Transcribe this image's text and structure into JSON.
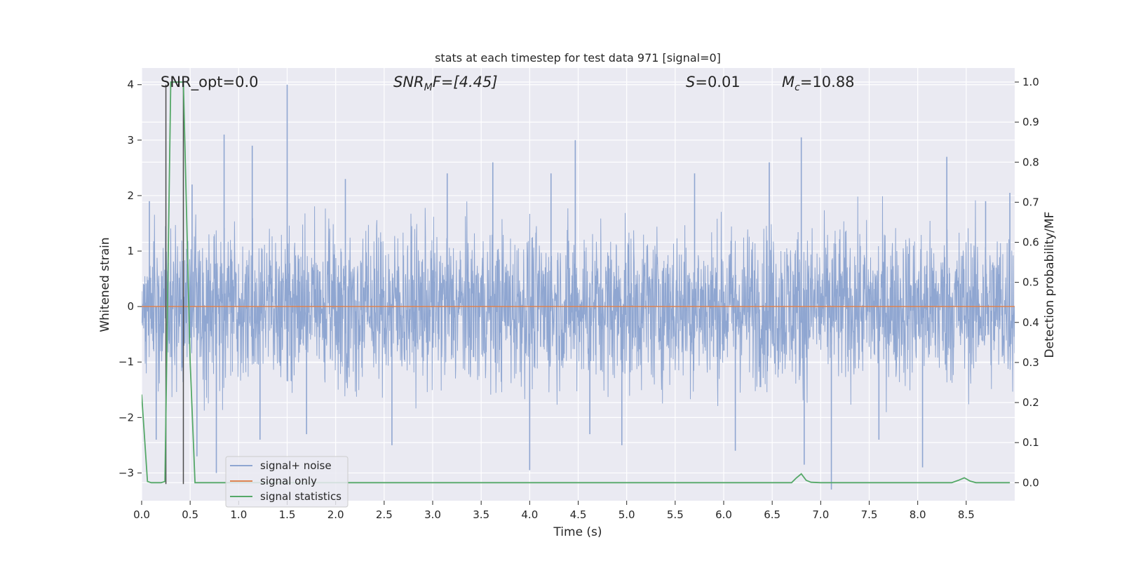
{
  "chart_data": {
    "type": "line",
    "title": "stats at each timestep for test data 971 [signal=0]",
    "xlabel": "Time (s)",
    "ylabel_left": "Whitened strain",
    "ylabel_right": "Detection probability/MF",
    "xlim": [
      0.0,
      9.0
    ],
    "ylim_left": [
      -3.5,
      4.3
    ],
    "ylim_right": [
      -0.045,
      1.035
    ],
    "xticks": [
      0.0,
      0.5,
      1.0,
      1.5,
      2.0,
      2.5,
      3.0,
      3.5,
      4.0,
      4.5,
      5.0,
      5.5,
      6.0,
      6.5,
      7.0,
      7.5,
      8.0,
      8.5
    ],
    "xtick_labels": [
      "0.0",
      "0.5",
      "1.0",
      "1.5",
      "2.0",
      "2.5",
      "3.0",
      "3.5",
      "4.0",
      "4.5",
      "5.0",
      "5.5",
      "6.0",
      "6.5",
      "7.0",
      "7.5",
      "8.0",
      "8.5"
    ],
    "yticks_left": [
      4,
      3,
      2,
      1,
      0,
      -1,
      -2,
      -3
    ],
    "ytick_labels_left": [
      "4",
      "3",
      "2",
      "1",
      "0",
      "−1",
      "−2",
      "−3"
    ],
    "yticks_right": [
      1.0,
      0.9,
      0.8,
      0.7,
      0.6,
      0.5,
      0.4,
      0.3,
      0.2,
      0.1,
      0.0
    ],
    "ytick_labels_right": [
      "1.0",
      "0.9",
      "0.8",
      "0.7",
      "0.6",
      "0.5",
      "0.4",
      "0.3",
      "0.2",
      "0.1",
      "0.0"
    ],
    "grid": true,
    "legend_position": "lower-left",
    "annotations": {
      "snr_opt": "SNR_opt=0.0",
      "snr_mf_base": "SNR",
      "snr_mf_sub": "M",
      "snr_mf_rest": "F=[4.45]",
      "s_base": "S",
      "s_rest": "=0.01",
      "mc_base": "M",
      "mc_sub": "c",
      "mc_rest": "=10.88"
    },
    "series": [
      {
        "name": "signal+ noise",
        "color": "#8fa6d1",
        "style": "dense noise, amplitude range about -3.3 to 4.0",
        "spikes": [
          {
            "x": 0.08,
            "y": 1.9
          },
          {
            "x": 0.15,
            "y": -2.4
          },
          {
            "x": 0.52,
            "y": 2.2
          },
          {
            "x": 0.57,
            "y": -2.7
          },
          {
            "x": 0.77,
            "y": -3.0
          },
          {
            "x": 0.85,
            "y": 3.1
          },
          {
            "x": 1.14,
            "y": 2.9
          },
          {
            "x": 1.22,
            "y": -2.4
          },
          {
            "x": 1.5,
            "y": 4.0
          },
          {
            "x": 1.7,
            "y": -2.3
          },
          {
            "x": 2.1,
            "y": 2.3
          },
          {
            "x": 2.58,
            "y": -2.5
          },
          {
            "x": 3.15,
            "y": 2.4
          },
          {
            "x": 3.62,
            "y": 2.6
          },
          {
            "x": 4.0,
            "y": -2.95
          },
          {
            "x": 4.22,
            "y": 2.4
          },
          {
            "x": 4.47,
            "y": 3.0
          },
          {
            "x": 4.62,
            "y": -2.3
          },
          {
            "x": 4.95,
            "y": -2.5
          },
          {
            "x": 5.7,
            "y": 2.4
          },
          {
            "x": 6.12,
            "y": -2.6
          },
          {
            "x": 6.47,
            "y": 2.6
          },
          {
            "x": 6.8,
            "y": 3.05
          },
          {
            "x": 6.83,
            "y": -2.85
          },
          {
            "x": 7.11,
            "y": -3.3
          },
          {
            "x": 7.6,
            "y": -2.4
          },
          {
            "x": 8.05,
            "y": -2.9
          },
          {
            "x": 8.3,
            "y": 2.7
          },
          {
            "x": 8.7,
            "y": 1.9
          },
          {
            "x": 8.95,
            "y": 2.05
          }
        ]
      },
      {
        "name": "signal only",
        "color": "#dd8452",
        "x": [
          0.0,
          9.0
        ],
        "y": [
          0.0,
          0.0
        ]
      },
      {
        "name": "signal statistics",
        "color": "#55a868",
        "axis": "right",
        "x": [
          0.0,
          0.06,
          0.1,
          0.15,
          0.2,
          0.24,
          0.3,
          0.35,
          0.4,
          0.43,
          0.5,
          0.55,
          0.6,
          1.0,
          2.0,
          3.0,
          4.0,
          5.0,
          6.0,
          6.7,
          6.75,
          6.8,
          6.85,
          6.9,
          7.0,
          8.0,
          8.35,
          8.42,
          8.48,
          8.54,
          8.6,
          8.95
        ],
        "y": [
          0.22,
          0.003,
          0.0,
          0.0,
          0.0,
          0.003,
          1.0,
          1.0,
          1.0,
          1.0,
          0.3,
          0.0,
          0.0,
          0.0,
          0.0,
          0.0,
          0.0,
          0.0,
          0.0,
          0.0,
          0.012,
          0.022,
          0.006,
          0.001,
          0.0,
          0.0,
          0.0,
          0.006,
          0.012,
          0.004,
          0.0,
          0.0
        ]
      },
      {
        "name": "",
        "color": "#4c4c4c",
        "style": "vertical markers",
        "x": [
          0.25,
          0.43
        ],
        "y_range": [
          -3.2,
          4.0
        ]
      }
    ]
  }
}
